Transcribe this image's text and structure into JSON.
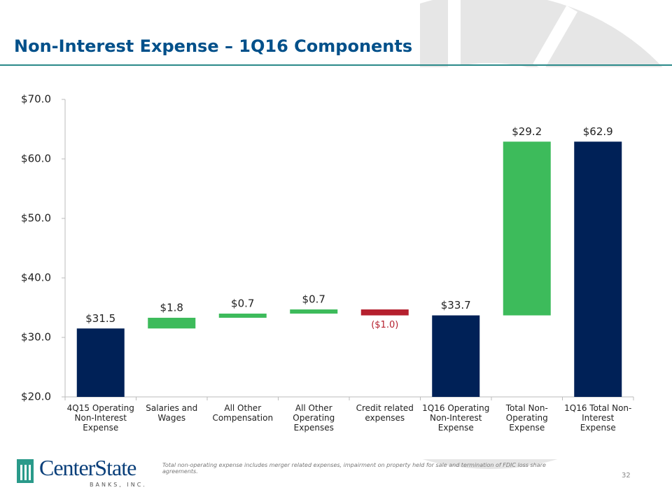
{
  "title": "Non-Interest Expense – 1Q16 Components",
  "chart_data": {
    "type": "waterfall",
    "categories": [
      "4Q15 Operating Non-Interest Expense",
      "Salaries and Wages",
      "All Other Compensation",
      "All Other Operating Expenses",
      "Credit related expenses",
      "1Q16 Operating Non-Interest Expense",
      "Total Non-Operating Expense",
      "1Q16 Total Non-Interest Expense"
    ],
    "values": [
      31.5,
      1.8,
      0.7,
      0.7,
      -1.0,
      33.7,
      29.2,
      62.9
    ],
    "value_labels": [
      "$31.5",
      "$1.8",
      "$0.7",
      "$0.7",
      "($1.0)",
      "$33.7",
      "$29.2",
      "$62.9"
    ],
    "bar_kinds": [
      "total",
      "delta",
      "delta",
      "delta",
      "delta",
      "total",
      "delta",
      "total"
    ],
    "colors": {
      "total": "#002157",
      "increase": "#3dbb5b",
      "decrease": "#b5202e"
    },
    "ylim": [
      20,
      70
    ],
    "yticks": [
      {
        "value": 20,
        "label": "$20.0"
      },
      {
        "value": 30,
        "label": "$30.0"
      },
      {
        "value": 40,
        "label": "$40.0"
      },
      {
        "value": 50,
        "label": "$50.0"
      },
      {
        "value": 60,
        "label": "$60.0"
      },
      {
        "value": 70,
        "label": "$70.0"
      }
    ]
  },
  "footnote": "Total non-operating expense includes merger related expenses, impairment on property held for sale and termination of FDIC loss share agreements.",
  "page_number": "32",
  "logo": {
    "name": "CenterState",
    "sub": "BANKS, INC."
  }
}
